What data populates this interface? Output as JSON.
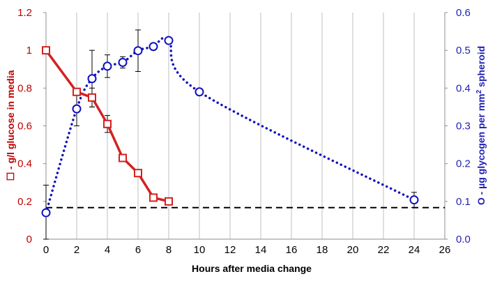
{
  "chart_data": {
    "type": "line",
    "xlabel": "Hours after media change",
    "xlim": [
      0,
      26
    ],
    "x_ticks": [
      "0",
      "2",
      "4",
      "6",
      "8",
      "10",
      "12",
      "14",
      "16",
      "18",
      "20",
      "22",
      "24",
      "26"
    ],
    "ylabel_left_marker": "☐",
    "ylabel_left_text": " - g/l glucose in media",
    "ylim_left": [
      0,
      1.2
    ],
    "y_ticks_left": [
      "0",
      "0.2",
      "0.4",
      "0.6",
      "0.8",
      "1",
      "1.2"
    ],
    "ylabel_right_marker": "O",
    "ylabel_right_pre": " - µg  glycogen per mm",
    "ylabel_right_sup": "2",
    "ylabel_right_post": " spheroid",
    "ylim_right": [
      0,
      0.6
    ],
    "y_ticks_right": [
      "0.0",
      "0.1",
      "0.2",
      "0.3",
      "0.4",
      "0.5",
      "0.6"
    ],
    "grid": "vertical",
    "series": [
      {
        "axis": "left",
        "marker": "square",
        "line": "solid",
        "color": "#d42020",
        "x": [
          0,
          2,
          3,
          4,
          5,
          6,
          7,
          8
        ],
        "y": [
          1.0,
          0.78,
          0.75,
          0.61,
          0.43,
          0.35,
          0.22,
          0.2
        ],
        "err": [
          0,
          0,
          0.05,
          0.045,
          0,
          0,
          0,
          0
        ]
      },
      {
        "axis": "right",
        "marker": "circle",
        "line": "dotted",
        "color": "#1010c0",
        "x": [
          0,
          2,
          3,
          4,
          5,
          6,
          7,
          8,
          10,
          24
        ],
        "y": [
          0.07,
          0.345,
          0.425,
          0.458,
          0.468,
          0.499,
          0.51,
          0.526,
          0.39,
          0.104
        ],
        "err": [
          0.073,
          0.045,
          0.075,
          0.03,
          0.015,
          0.055,
          0,
          0,
          0,
          0.02
        ]
      }
    ],
    "reference_line": {
      "axis": "left",
      "y": 0.167,
      "style": "dashed",
      "color": "#000000"
    }
  }
}
